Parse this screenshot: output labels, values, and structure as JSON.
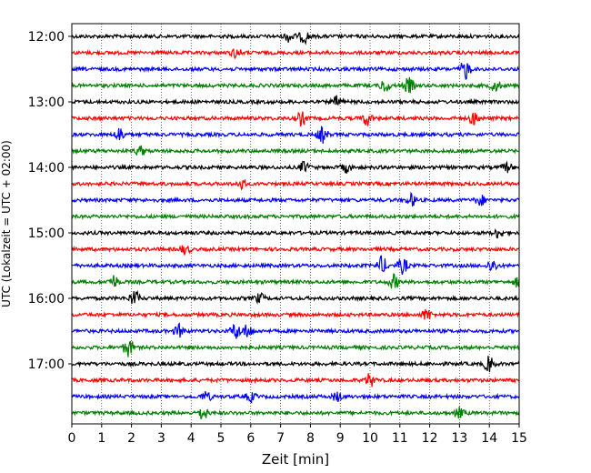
{
  "chart_data": {
    "type": "line",
    "chart_kind": "helicorder (seismogram drum plot)",
    "xlabel": "Zeit  [min]",
    "ylabel": "UTC (Lokalzeit = UTC + 02:00)",
    "xlim": [
      0,
      15
    ],
    "x_ticks": [
      "0",
      "1",
      "2",
      "3",
      "4",
      "5",
      "6",
      "7",
      "8",
      "9",
      "10",
      "11",
      "12",
      "13",
      "14",
      "15"
    ],
    "y_tick_labels": [
      "12:00",
      "13:00",
      "14:00",
      "15:00",
      "16:00",
      "17:00"
    ],
    "grid": "vertical dotted lines at each minute",
    "trace_colors": [
      "#000000",
      "#ff0000",
      "#0000ff",
      "#008000"
    ],
    "traces": [
      {
        "start": "12:00",
        "color": "#000000",
        "events": [
          [
            7.3,
            1.6
          ],
          [
            7.8,
            1.8
          ]
        ]
      },
      {
        "start": "12:15",
        "color": "#ff0000",
        "events": [
          [
            5.5,
            1.3
          ]
        ]
      },
      {
        "start": "12:30",
        "color": "#0000ff",
        "events": [
          [
            13.2,
            2.8
          ]
        ]
      },
      {
        "start": "12:45",
        "color": "#008000",
        "events": [
          [
            10.5,
            1.8
          ],
          [
            11.3,
            2.2
          ],
          [
            14.2,
            1.6
          ]
        ]
      },
      {
        "start": "13:00",
        "color": "#000000",
        "events": [
          [
            8.9,
            1.5
          ]
        ]
      },
      {
        "start": "13:15",
        "color": "#ff0000",
        "events": [
          [
            7.7,
            2.0
          ],
          [
            9.9,
            2.0
          ],
          [
            13.5,
            1.9
          ]
        ]
      },
      {
        "start": "13:30",
        "color": "#0000ff",
        "events": [
          [
            1.6,
            2.0
          ],
          [
            8.4,
            2.2
          ]
        ]
      },
      {
        "start": "13:45",
        "color": "#008000",
        "events": [
          [
            2.3,
            1.3
          ]
        ]
      },
      {
        "start": "14:00",
        "color": "#000000",
        "events": [
          [
            7.8,
            1.5
          ],
          [
            9.2,
            1.3
          ],
          [
            14.6,
            1.3
          ]
        ]
      },
      {
        "start": "14:15",
        "color": "#ff0000",
        "events": [
          [
            5.7,
            1.3
          ]
        ]
      },
      {
        "start": "14:30",
        "color": "#0000ff",
        "events": [
          [
            11.4,
            1.7
          ],
          [
            13.7,
            1.5
          ]
        ]
      },
      {
        "start": "14:45",
        "color": "#008000",
        "events": []
      },
      {
        "start": "15:00",
        "color": "#000000",
        "events": [
          [
            14.3,
            1.3
          ]
        ]
      },
      {
        "start": "15:15",
        "color": "#ff0000",
        "events": [
          [
            3.8,
            1.3
          ]
        ]
      },
      {
        "start": "15:30",
        "color": "#0000ff",
        "events": [
          [
            10.4,
            2.5
          ],
          [
            11.1,
            2.2
          ],
          [
            14.1,
            1.8
          ]
        ]
      },
      {
        "start": "15:45",
        "color": "#008000",
        "events": [
          [
            1.4,
            1.8
          ],
          [
            10.8,
            2.0
          ],
          [
            15.0,
            1.8
          ]
        ]
      },
      {
        "start": "16:00",
        "color": "#000000",
        "events": [
          [
            2.1,
            2.2
          ],
          [
            6.3,
            1.3
          ]
        ]
      },
      {
        "start": "16:15",
        "color": "#ff0000",
        "events": [
          [
            11.9,
            1.6
          ]
        ]
      },
      {
        "start": "16:30",
        "color": "#0000ff",
        "events": [
          [
            3.6,
            1.7
          ],
          [
            5.5,
            2.3
          ],
          [
            5.9,
            1.9
          ]
        ]
      },
      {
        "start": "16:45",
        "color": "#008000",
        "events": [
          [
            1.9,
            2.5
          ]
        ]
      },
      {
        "start": "17:00",
        "color": "#000000",
        "events": [
          [
            14.0,
            2.2
          ]
        ]
      },
      {
        "start": "17:15",
        "color": "#ff0000",
        "events": [
          [
            10.0,
            1.9
          ]
        ]
      },
      {
        "start": "17:30",
        "color": "#0000ff",
        "events": [
          [
            4.5,
            1.3
          ],
          [
            6.0,
            1.3
          ],
          [
            8.9,
            1.3
          ]
        ]
      },
      {
        "start": "17:45",
        "color": "#008000",
        "events": [
          [
            4.4,
            1.9
          ],
          [
            13.0,
            1.3
          ]
        ]
      }
    ]
  }
}
